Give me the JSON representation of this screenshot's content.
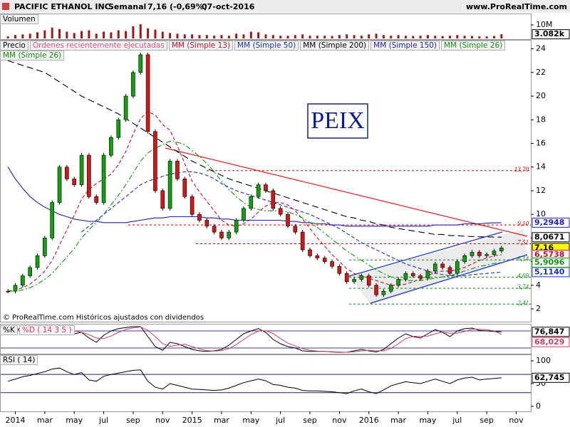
{
  "header": {
    "title": "PACIFIC ETHANOL INC.",
    "period": "Semanal",
    "quote": "7,16 (-0,69%)",
    "date": "07-oct-2016",
    "site": "www.ProRealTime.com"
  },
  "note": "© ProRealTime.com Históricos ajustados con dividendos",
  "chart_data": [
    {
      "type": "bar",
      "title": "Volumen",
      "color": "#a01818",
      "ylim": [
        0,
        17900000
      ],
      "yticks": [
        {
          "value": 10000000,
          "label": "10M"
        }
      ],
      "last_label": "3.082k",
      "values": [
        1500000,
        2500000,
        3000000,
        3500000,
        4500000,
        6000000,
        8000000,
        7000000,
        5000000,
        4000000,
        5500000,
        6000000,
        3500000,
        5000000,
        4500000,
        6000000,
        5500000,
        9000000,
        10500000,
        7500000,
        6500000,
        5000000,
        4000000,
        3500000,
        3000000,
        3000000,
        2500000,
        2500000,
        2000000,
        2500000,
        2000000,
        3500000,
        3000000,
        5000000,
        4500000,
        3000000,
        2500000,
        2000000,
        2000000,
        2500000,
        3000000,
        2000000,
        2000000,
        2000000,
        1800000,
        2500000,
        3000000,
        2500000,
        2000000,
        3000000,
        3500000,
        2500000,
        2000000,
        2500000,
        2000000,
        1800000,
        2000000,
        2500000,
        2000000,
        1800000,
        2000000,
        2500000,
        2000000,
        1800000,
        1500000,
        1500000,
        1800000,
        3082000,
        null,
        null,
        null
      ]
    },
    {
      "type": "candlestick",
      "annotation": "PEIX",
      "categories": [
        null,
        "2014",
        null,
        null,
        null,
        "mar",
        null,
        null,
        null,
        "may",
        null,
        null,
        null,
        "jul",
        null,
        null,
        null,
        "sep",
        null,
        null,
        null,
        "nov",
        null,
        null,
        null,
        "2015",
        null,
        null,
        null,
        "mar",
        null,
        null,
        null,
        "may",
        null,
        null,
        null,
        "jul",
        null,
        null,
        null,
        "sep",
        null,
        null,
        null,
        "nov",
        null,
        null,
        null,
        "2016",
        null,
        null,
        null,
        "mar",
        null,
        null,
        null,
        "may",
        null,
        null,
        null,
        "jul",
        null,
        null,
        null,
        "sep",
        null,
        null,
        null,
        "nov",
        null
      ],
      "ylim": [
        0.92,
        24.7
      ],
      "yticks": [
        2,
        4,
        6,
        8,
        10,
        12,
        14,
        16,
        18,
        20,
        22,
        24
      ],
      "up_color": "#10a010",
      "down_color": "#d01818",
      "legend_items": [
        {
          "name": "Órdenes recientemente ejecutadas",
          "color": "#e0507a"
        }
      ],
      "legend_second_row": {
        "name": "MM (Simple 26)",
        "color": "#109010"
      },
      "levels": [
        {
          "value": 13.7,
          "label": "13,70",
          "color": "#c00000"
        },
        {
          "value": 9.1,
          "label": "9,10",
          "color": "#c00000"
        },
        {
          "value": 7.51,
          "label": "7,51",
          "color": "#c00000"
        },
        {
          "value": 6.14,
          "label": "6,14",
          "color": "#108010"
        },
        {
          "value": 4.69,
          "label": "4,69",
          "color": "#108010"
        },
        {
          "value": 3.74,
          "label": "3,74",
          "color": "#108010"
        },
        {
          "value": 2.41,
          "label": "2,41",
          "color": "#108010"
        }
      ],
      "series": [
        {
          "name": "Precio",
          "color": "#000000",
          "label_fill": "#ffff00",
          "last_label": "7,16",
          "values": [
            3.5,
            4,
            4.8,
            5.5,
            6.5,
            8,
            11,
            14,
            13,
            12.5,
            15,
            11.5,
            11,
            15,
            16.5,
            18,
            20,
            22,
            23.5,
            17,
            12,
            10.5,
            14.5,
            13,
            11.5,
            10,
            9.5,
            9,
            8.5,
            8,
            8.5,
            9.5,
            10.5,
            11.5,
            12.5,
            12,
            10.5,
            10,
            9,
            8.5,
            7,
            6.5,
            6.3,
            6,
            5.6,
            5,
            4.3,
            4.5,
            4.8,
            4,
            3.2,
            3.5,
            4,
            4.5,
            5,
            4.8,
            4.6,
            5.2,
            5.8,
            5.5,
            5,
            6,
            6.5,
            6.8,
            6.5,
            6.6,
            6.9,
            7.16,
            null,
            null,
            null
          ]
        },
        {
          "name": "MM (Simple 13)",
          "color": "#c01030",
          "style": "dashed",
          "last_label": "6,5738",
          "values": [
            3.5,
            3.6,
            3.8,
            4.1,
            4.6,
            5.2,
            6.1,
            7.4,
            8.7,
            9.9,
            11.3,
            12.1,
            12.6,
            13,
            13.4,
            14.2,
            15.3,
            16.8,
            18.1,
            18.7,
            18.4,
            17.6,
            17.1,
            15.8,
            14.3,
            12.8,
            11.9,
            11.1,
            10.3,
            9.5,
            9.1,
            9,
            9.2,
            9.6,
            10.2,
            10.7,
            11,
            11,
            10.8,
            10.3,
            9.6,
            8.8,
            8,
            7.3,
            6.6,
            6,
            5.4,
            5,
            4.8,
            4.6,
            4.4,
            4.2,
            4,
            4,
            4.1,
            4.3,
            4.5,
            4.8,
            5.1,
            5.2,
            5.2,
            5.3,
            5.5,
            5.8,
            6.1,
            6.3,
            6.5,
            6.5738,
            null,
            null,
            null
          ]
        },
        {
          "name": "MM (Simple 50)",
          "color": "#1830c0",
          "style": "dashed",
          "last_label": "5,1140",
          "values": [
            null,
            null,
            null,
            null,
            null,
            null,
            null,
            null,
            null,
            null,
            8.5,
            9,
            9.5,
            10,
            10.5,
            11,
            11.5,
            12,
            12.5,
            12.8,
            13,
            13.2,
            13.4,
            13.5,
            13.6,
            13.6,
            13.5,
            13.3,
            13,
            12.6,
            12.3,
            12,
            11.8,
            11.6,
            11.4,
            11.2,
            11,
            10.8,
            10.6,
            10.4,
            10.2,
            10,
            9.7,
            9.4,
            9.1,
            8.8,
            8.4,
            8,
            7.6,
            7.3,
            7,
            6.7,
            6.4,
            6.1,
            5.8,
            5.6,
            5.4,
            5.2,
            5,
            4.9,
            4.8,
            4.8,
            4.8,
            4.9,
            4.95,
            5,
            5.05,
            5.114,
            null,
            null,
            null
          ]
        },
        {
          "name": "MM (Simple 200)",
          "color": "#000000",
          "style": "longdash",
          "last_label": "8,0671",
          "values": [
            23,
            22.8,
            22.6,
            22.4,
            22.2,
            22,
            21.6,
            21.2,
            20.8,
            20.4,
            20,
            19.7,
            19.4,
            19.1,
            18.8,
            18.5,
            18.1,
            17.7,
            17.3,
            16.9,
            16.5,
            16.1,
            15.7,
            15.3,
            14.9,
            14.5,
            14.2,
            13.9,
            13.6,
            13.3,
            13,
            12.8,
            12.6,
            12.4,
            12.2,
            12,
            11.8,
            11.6,
            11.4,
            11.2,
            11,
            10.8,
            10.6,
            10.4,
            10.2,
            10,
            9.8,
            9.7,
            9.5,
            9.4,
            9.2,
            9.1,
            8.9,
            8.8,
            8.7,
            8.6,
            8.5,
            8.4,
            8.3,
            8.3,
            8.2,
            8.2,
            8.15,
            8.12,
            8.1,
            8.09,
            8.08,
            8.0671,
            null,
            null,
            null
          ]
        },
        {
          "name": "MM (Simple 150)",
          "color": "#2020b0",
          "style": "solid",
          "last_label": "9,2948",
          "values": [
            14,
            13,
            12.2,
            11.5,
            11,
            10.6,
            10.3,
            10,
            9.8,
            9.6,
            9.5,
            9.4,
            9.4,
            9.3,
            9.3,
            9.3,
            9.3,
            9.4,
            9.5,
            9.6,
            9.7,
            9.7,
            9.8,
            9.8,
            9.8,
            9.8,
            9.8,
            9.7,
            9.7,
            9.6,
            9.6,
            9.5,
            9.5,
            9.5,
            9.5,
            9.5,
            9.5,
            9.5,
            9.4,
            9.4,
            9.3,
            9.3,
            9.2,
            9.2,
            9.1,
            9.1,
            9,
            9,
            9,
            9,
            9,
            9,
            9,
            9,
            9,
            9,
            9,
            9,
            9.1,
            9.1,
            9.1,
            9.1,
            9.2,
            9.2,
            9.2,
            9.25,
            9.28,
            9.2948,
            null,
            null,
            null
          ]
        },
        {
          "name": "MM (Simple 26)",
          "color": "#109010",
          "style": "dashdot",
          "last_label": "5,9096",
          "values": [
            3.5,
            3.5,
            3.6,
            3.8,
            4.1,
            4.5,
            5,
            5.7,
            6.4,
            7.1,
            8,
            8.7,
            9.3,
            10,
            10.8,
            11.6,
            12.5,
            13.5,
            14.5,
            15.2,
            15.6,
            15.9,
            16.2,
            16.1,
            15.9,
            15.4,
            14.9,
            14.3,
            13.6,
            12.8,
            12.1,
            11.5,
            11,
            10.6,
            10.4,
            10.3,
            10.3,
            10.3,
            10.2,
            10,
            9.7,
            9.3,
            8.9,
            8.4,
            7.9,
            7.4,
            6.9,
            6.5,
            6.1,
            5.7,
            5.3,
            5,
            4.7,
            4.5,
            4.4,
            4.4,
            4.4,
            4.5,
            4.6,
            4.7,
            4.8,
            5,
            5.2,
            5.4,
            5.6,
            5.7,
            5.85,
            5.9096,
            null,
            null,
            null
          ]
        }
      ]
    },
    {
      "type": "line",
      "ylim": [
        0,
        100
      ],
      "hlines": [
        80,
        20
      ],
      "hline_color": "#3838a0",
      "series": [
        {
          "name": "%K",
          "color": "#000000",
          "last_label": "76,847",
          "values": [
            80,
            85,
            90,
            92,
            95,
            95,
            96,
            90,
            80,
            70,
            75,
            55,
            40,
            65,
            80,
            88,
            92,
            95,
            95,
            60,
            25,
            12,
            40,
            35,
            25,
            15,
            10,
            8,
            10,
            15,
            30,
            50,
            70,
            80,
            88,
            75,
            50,
            35,
            25,
            20,
            10,
            8,
            8,
            8,
            6,
            5,
            5,
            10,
            15,
            10,
            6,
            15,
            35,
            55,
            70,
            60,
            55,
            70,
            85,
            75,
            60,
            80,
            88,
            90,
            82,
            80,
            78,
            76.847,
            null,
            null,
            null
          ]
        },
        {
          "name": "%D ( 14 3 5 )",
          "color": "#d04060",
          "last_label": "68,029",
          "values": [
            78,
            82,
            86,
            89,
            92,
            94,
            95,
            93,
            88,
            80,
            75,
            67,
            55,
            53,
            62,
            75,
            85,
            91,
            94,
            82,
            60,
            35,
            26,
            30,
            33,
            25,
            17,
            11,
            9,
            11,
            18,
            32,
            50,
            67,
            79,
            81,
            71,
            53,
            37,
            27,
            18,
            12,
            9,
            8,
            7,
            6,
            5,
            7,
            10,
            12,
            10,
            10,
            19,
            35,
            53,
            61,
            61,
            62,
            70,
            76,
            72,
            72,
            78,
            86,
            86,
            84,
            80,
            68.029,
            null,
            null,
            null
          ]
        }
      ]
    },
    {
      "type": "line",
      "ylim": [
        -11,
        112.5
      ],
      "yticks": [
        0,
        50,
        100
      ],
      "hlines": [
        70,
        30
      ],
      "hline_color": "#202070",
      "series": [
        {
          "name": "RSI ( 14)",
          "color": "#000000",
          "last_label": "62,745",
          "values": [
            55,
            60,
            65,
            68,
            72,
            76,
            82,
            84,
            76,
            70,
            74,
            58,
            55,
            66,
            70,
            73,
            76,
            79,
            80,
            55,
            42,
            38,
            50,
            46,
            42,
            38,
            37,
            36,
            35,
            36,
            40,
            46,
            52,
            56,
            60,
            56,
            48,
            46,
            42,
            40,
            35,
            34,
            34,
            33,
            32,
            30,
            28,
            34,
            38,
            32,
            28,
            36,
            45,
            50,
            54,
            52,
            50,
            55,
            60,
            55,
            50,
            58,
            62,
            64,
            58,
            60,
            61,
            62.745,
            null,
            null,
            null
          ]
        }
      ]
    }
  ]
}
